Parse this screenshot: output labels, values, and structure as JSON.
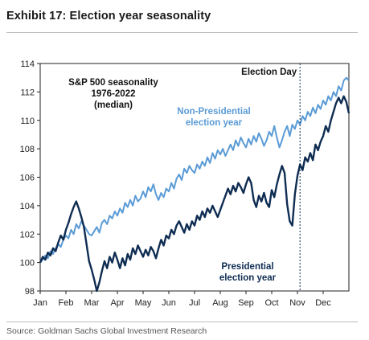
{
  "header": {
    "title": "Exhibit 17: Election year seasonality"
  },
  "footer": {
    "source": "Source: Goldman Sachs Global Investment Research"
  },
  "chart_data": {
    "type": "line",
    "title": "",
    "annotation_lines": [
      "S&P 500 seasonality",
      "1976-2022",
      "(median)"
    ],
    "xlabel": "",
    "ylabel": "",
    "ylim": [
      98,
      114
    ],
    "yticks": [
      98,
      100,
      102,
      104,
      106,
      108,
      110,
      112,
      114
    ],
    "xlim": [
      0,
      12
    ],
    "xticks": [
      "Jan",
      "Feb",
      "Mar",
      "Apr",
      "May",
      "Jun",
      "Jul",
      "Aug",
      "Sep",
      "Oct",
      "Nov",
      "Dec"
    ],
    "grid": false,
    "reference_line": {
      "label": "Election Day",
      "x": 10.1,
      "style": "dashed"
    },
    "series": [
      {
        "name": "Non-Presidential election year",
        "label_lines": [
          "Non-Presidential",
          "election year"
        ],
        "color": "#5b9bd5",
        "x": [
          0.0,
          0.1,
          0.2,
          0.3,
          0.4,
          0.5,
          0.6,
          0.7,
          0.8,
          0.9,
          1.0,
          1.1,
          1.2,
          1.3,
          1.4,
          1.5,
          1.6,
          1.7,
          1.8,
          1.9,
          2.0,
          2.1,
          2.2,
          2.3,
          2.4,
          2.5,
          2.6,
          2.7,
          2.8,
          2.9,
          3.0,
          3.1,
          3.2,
          3.3,
          3.4,
          3.5,
          3.6,
          3.7,
          3.8,
          3.9,
          4.0,
          4.1,
          4.2,
          4.3,
          4.4,
          4.5,
          4.6,
          4.7,
          4.8,
          4.9,
          5.0,
          5.1,
          5.2,
          5.3,
          5.4,
          5.5,
          5.6,
          5.7,
          5.8,
          5.9,
          6.0,
          6.1,
          6.2,
          6.3,
          6.4,
          6.5,
          6.6,
          6.7,
          6.8,
          6.9,
          7.0,
          7.1,
          7.2,
          7.3,
          7.4,
          7.5,
          7.6,
          7.7,
          7.8,
          7.9,
          8.0,
          8.1,
          8.2,
          8.3,
          8.4,
          8.5,
          8.6,
          8.7,
          8.8,
          8.9,
          9.0,
          9.1,
          9.2,
          9.3,
          9.4,
          9.5,
          9.6,
          9.7,
          9.8,
          9.9,
          10.0,
          10.1,
          10.2,
          10.3,
          10.4,
          10.5,
          10.6,
          10.7,
          10.8,
          10.9,
          11.0,
          11.1,
          11.2,
          11.3,
          11.4,
          11.5,
          11.6,
          11.7,
          11.8,
          11.9,
          12.0
        ],
        "values": [
          100.0,
          100.2,
          100.5,
          100.3,
          100.8,
          100.6,
          101.0,
          101.3,
          101.1,
          101.6,
          101.9,
          101.7,
          102.3,
          102.0,
          102.7,
          102.4,
          102.9,
          102.6,
          102.3,
          102.0,
          101.9,
          102.2,
          102.5,
          102.1,
          102.8,
          103.0,
          102.7,
          103.3,
          103.1,
          103.6,
          103.3,
          103.8,
          103.5,
          104.2,
          103.9,
          104.4,
          104.0,
          104.7,
          104.3,
          104.5,
          105.0,
          104.6,
          105.3,
          105.0,
          105.5,
          104.8,
          104.4,
          104.9,
          104.6,
          105.2,
          105.0,
          105.6,
          105.2,
          105.9,
          106.2,
          105.8,
          106.6,
          106.3,
          106.8,
          106.5,
          106.3,
          106.9,
          106.6,
          107.1,
          106.8,
          107.4,
          107.0,
          107.7,
          107.3,
          107.9,
          107.6,
          108.0,
          107.5,
          107.9,
          108.3,
          107.9,
          108.6,
          108.2,
          108.8,
          108.4,
          108.1,
          108.7,
          108.3,
          108.9,
          108.5,
          109.1,
          108.7,
          108.2,
          108.6,
          109.2,
          108.9,
          109.6,
          108.8,
          108.1,
          108.6,
          109.2,
          109.6,
          108.9,
          109.7,
          109.4,
          110.0,
          109.7,
          110.3,
          110.0,
          110.6,
          110.3,
          110.9,
          110.5,
          111.1,
          110.8,
          111.4,
          111.1,
          111.7,
          111.4,
          112.0,
          111.7,
          112.4,
          112.1,
          112.8,
          113.0,
          112.8
        ]
      },
      {
        "name": "Presidential election year",
        "label_lines": [
          "Presidential",
          "election year"
        ],
        "color": "#0f2d52",
        "x": [
          0.0,
          0.1,
          0.2,
          0.3,
          0.4,
          0.5,
          0.6,
          0.7,
          0.8,
          0.9,
          1.0,
          1.1,
          1.2,
          1.3,
          1.4,
          1.5,
          1.6,
          1.7,
          1.8,
          1.9,
          2.0,
          2.1,
          2.2,
          2.3,
          2.4,
          2.5,
          2.6,
          2.7,
          2.8,
          2.9,
          3.0,
          3.1,
          3.2,
          3.3,
          3.4,
          3.5,
          3.6,
          3.7,
          3.8,
          3.9,
          4.0,
          4.1,
          4.2,
          4.3,
          4.4,
          4.5,
          4.6,
          4.7,
          4.8,
          4.9,
          5.0,
          5.1,
          5.2,
          5.3,
          5.4,
          5.5,
          5.6,
          5.7,
          5.8,
          5.9,
          6.0,
          6.1,
          6.2,
          6.3,
          6.4,
          6.5,
          6.6,
          6.7,
          6.8,
          6.9,
          7.0,
          7.1,
          7.2,
          7.3,
          7.4,
          7.5,
          7.6,
          7.7,
          7.8,
          7.9,
          8.0,
          8.1,
          8.2,
          8.3,
          8.4,
          8.5,
          8.6,
          8.7,
          8.8,
          8.9,
          9.0,
          9.1,
          9.2,
          9.3,
          9.4,
          9.5,
          9.6,
          9.7,
          9.8,
          9.9,
          10.0,
          10.1,
          10.2,
          10.3,
          10.4,
          10.5,
          10.6,
          10.7,
          10.8,
          10.9,
          11.0,
          11.1,
          11.2,
          11.3,
          11.4,
          11.5,
          11.6,
          11.7,
          11.8,
          11.9,
          12.0
        ],
        "values": [
          100.0,
          100.4,
          100.2,
          100.7,
          100.5,
          101.0,
          100.8,
          101.4,
          101.9,
          101.6,
          102.3,
          102.8,
          103.4,
          103.9,
          104.3,
          103.8,
          103.2,
          102.5,
          101.3,
          100.1,
          99.5,
          98.8,
          98.0,
          98.6,
          99.4,
          100.1,
          99.6,
          100.4,
          100.0,
          100.7,
          100.2,
          99.6,
          100.3,
          99.8,
          100.6,
          100.2,
          101.0,
          100.6,
          101.2,
          100.8,
          100.4,
          100.9,
          100.5,
          101.1,
          100.8,
          100.3,
          101.0,
          101.6,
          101.2,
          101.9,
          101.7,
          102.3,
          102.0,
          102.6,
          102.9,
          102.5,
          102.1,
          102.7,
          102.3,
          102.9,
          102.6,
          103.3,
          103.0,
          103.6,
          103.2,
          103.8,
          103.5,
          104.0,
          103.6,
          103.2,
          103.7,
          104.2,
          104.7,
          105.2,
          104.8,
          105.4,
          105.0,
          105.6,
          105.3,
          104.9,
          105.5,
          106.0,
          105.6,
          104.4,
          103.9,
          104.7,
          104.3,
          104.9,
          104.2,
          103.9,
          105.1,
          104.6,
          105.5,
          106.2,
          106.8,
          106.3,
          104.1,
          102.9,
          102.6,
          104.8,
          106.1,
          106.9,
          106.5,
          107.4,
          107.1,
          107.7,
          107.2,
          108.3,
          107.9,
          108.5,
          108.9,
          109.6,
          109.2,
          110.0,
          110.6,
          111.2,
          111.6,
          111.2,
          111.7,
          111.3,
          110.5
        ]
      }
    ]
  }
}
